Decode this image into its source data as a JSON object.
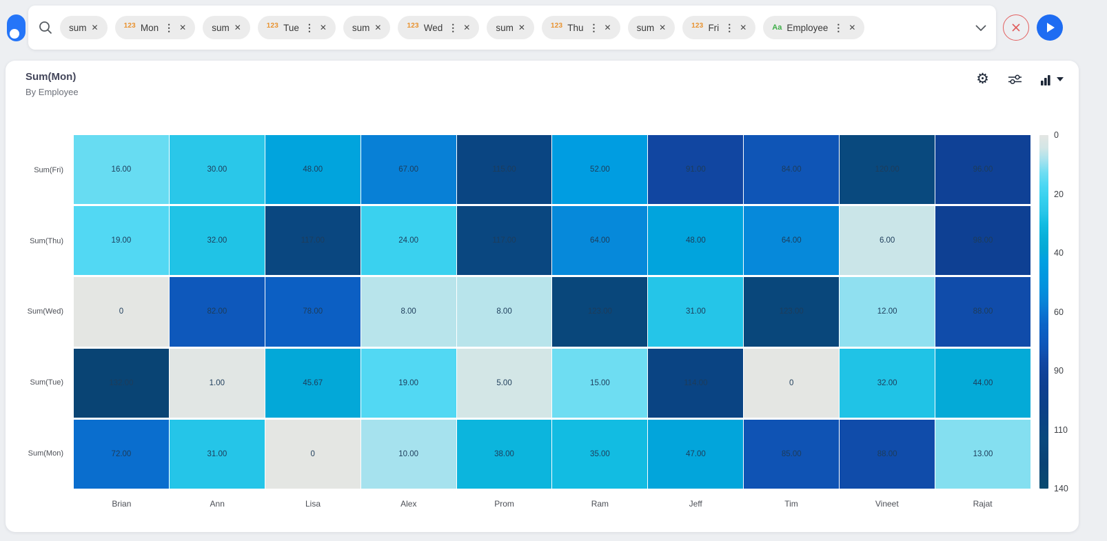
{
  "topbar": {
    "chips": [
      {
        "label": "sum",
        "prefix": "",
        "menu": false
      },
      {
        "label": "Mon",
        "prefix": "123",
        "menu": true
      },
      {
        "label": "sum",
        "prefix": "",
        "menu": false
      },
      {
        "label": "Tue",
        "prefix": "123",
        "menu": true
      },
      {
        "label": "sum",
        "prefix": "",
        "menu": false
      },
      {
        "label": "Wed",
        "prefix": "123",
        "menu": true
      },
      {
        "label": "sum",
        "prefix": "",
        "menu": false
      },
      {
        "label": "Thu",
        "prefix": "123",
        "menu": true
      },
      {
        "label": "sum",
        "prefix": "",
        "menu": false
      },
      {
        "label": "Fri",
        "prefix": "123",
        "menu": true
      },
      {
        "label": "Employee",
        "prefix": "Aa",
        "menu": true
      }
    ],
    "prefix_colors": {
      "123": "#e8922f",
      "Aa": "#3fae49"
    },
    "menu_glyph": "⋮",
    "close_glyph": "✕",
    "accent_blue": "#1e6cf2",
    "accent_red": "#e36060"
  },
  "card": {
    "title": "Sum(Mon)",
    "subtitle": "By Employee",
    "toolbar_icons": [
      "settings-gear",
      "filter-sliders",
      "chart-type-selector"
    ]
  },
  "chart_data": {
    "type": "heatmap",
    "title": "Sum(Mon)",
    "subtitle": "By Employee",
    "x_categories": [
      "Brian",
      "Ann",
      "Lisa",
      "Alex",
      "Prom",
      "Ram",
      "Jeff",
      "Tim",
      "Vineet",
      "Rajat"
    ],
    "y_categories": [
      "Sum(Fri)",
      "Sum(Thu)",
      "Sum(Wed)",
      "Sum(Tue)",
      "Sum(Mon)"
    ],
    "cell_labels": [
      [
        "16.00",
        "30.00",
        "48.00",
        "67.00",
        "115.00",
        "52.00",
        "91.00",
        "84.00",
        "120.00",
        "96.00"
      ],
      [
        "19.00",
        "32.00",
        "117.00",
        "24.00",
        "117.00",
        "64.00",
        "48.00",
        "64.00",
        "6.00",
        "98.00"
      ],
      [
        "0",
        "82.00",
        "78.00",
        "8.00",
        "8.00",
        "123.00",
        "31.00",
        "123.00",
        "12.00",
        "88.00"
      ],
      [
        "132.00",
        "1.00",
        "45.67",
        "19.00",
        "5.00",
        "15.00",
        "114.00",
        "0",
        "32.00",
        "44.00"
      ],
      [
        "72.00",
        "31.00",
        "0",
        "10.00",
        "38.00",
        "35.00",
        "47.00",
        "85.00",
        "88.00",
        "13.00"
      ]
    ],
    "values": [
      [
        16,
        30,
        48,
        67,
        115,
        52,
        91,
        84,
        120,
        96
      ],
      [
        19,
        32,
        117,
        24,
        117,
        64,
        48,
        64,
        6,
        98
      ],
      [
        0,
        82,
        78,
        8,
        8,
        123,
        31,
        123,
        12,
        88
      ],
      [
        132,
        1,
        45.67,
        19,
        5,
        15,
        114,
        0,
        32,
        44
      ],
      [
        72,
        31,
        0,
        10,
        38,
        35,
        47,
        85,
        88,
        13
      ]
    ],
    "scale_domain": [
      0,
      140
    ],
    "colorbar_ticks": [
      "0",
      "20",
      "40",
      "60",
      "90",
      "110",
      "140"
    ],
    "legend_position": "right",
    "grid": false,
    "colormap_stops": [
      [
        0,
        "#e4e6e3"
      ],
      [
        5,
        "#d3e6e6"
      ],
      [
        10,
        "#a6e2ee"
      ],
      [
        15,
        "#6eddf2"
      ],
      [
        20,
        "#4bd7f3"
      ],
      [
        25,
        "#36d0ee"
      ],
      [
        30,
        "#2ac7e9"
      ],
      [
        35,
        "#12bce2"
      ],
      [
        40,
        "#08b0da"
      ],
      [
        45,
        "#03a9d6"
      ],
      [
        50,
        "#00a0e2"
      ],
      [
        55,
        "#0099e0"
      ],
      [
        60,
        "#0292de"
      ],
      [
        65,
        "#0787d9"
      ],
      [
        70,
        "#0a75d2"
      ],
      [
        75,
        "#0b64c7"
      ],
      [
        80,
        "#0d5cc0"
      ],
      [
        85,
        "#0f53b4"
      ],
      [
        90,
        "#1147a3"
      ],
      [
        95,
        "#0f4197"
      ],
      [
        100,
        "#0e3f90"
      ],
      [
        110,
        "#0b4186"
      ],
      [
        120,
        "#09497e"
      ],
      [
        130,
        "#094275"
      ],
      [
        140,
        "#094a6f"
      ]
    ]
  }
}
